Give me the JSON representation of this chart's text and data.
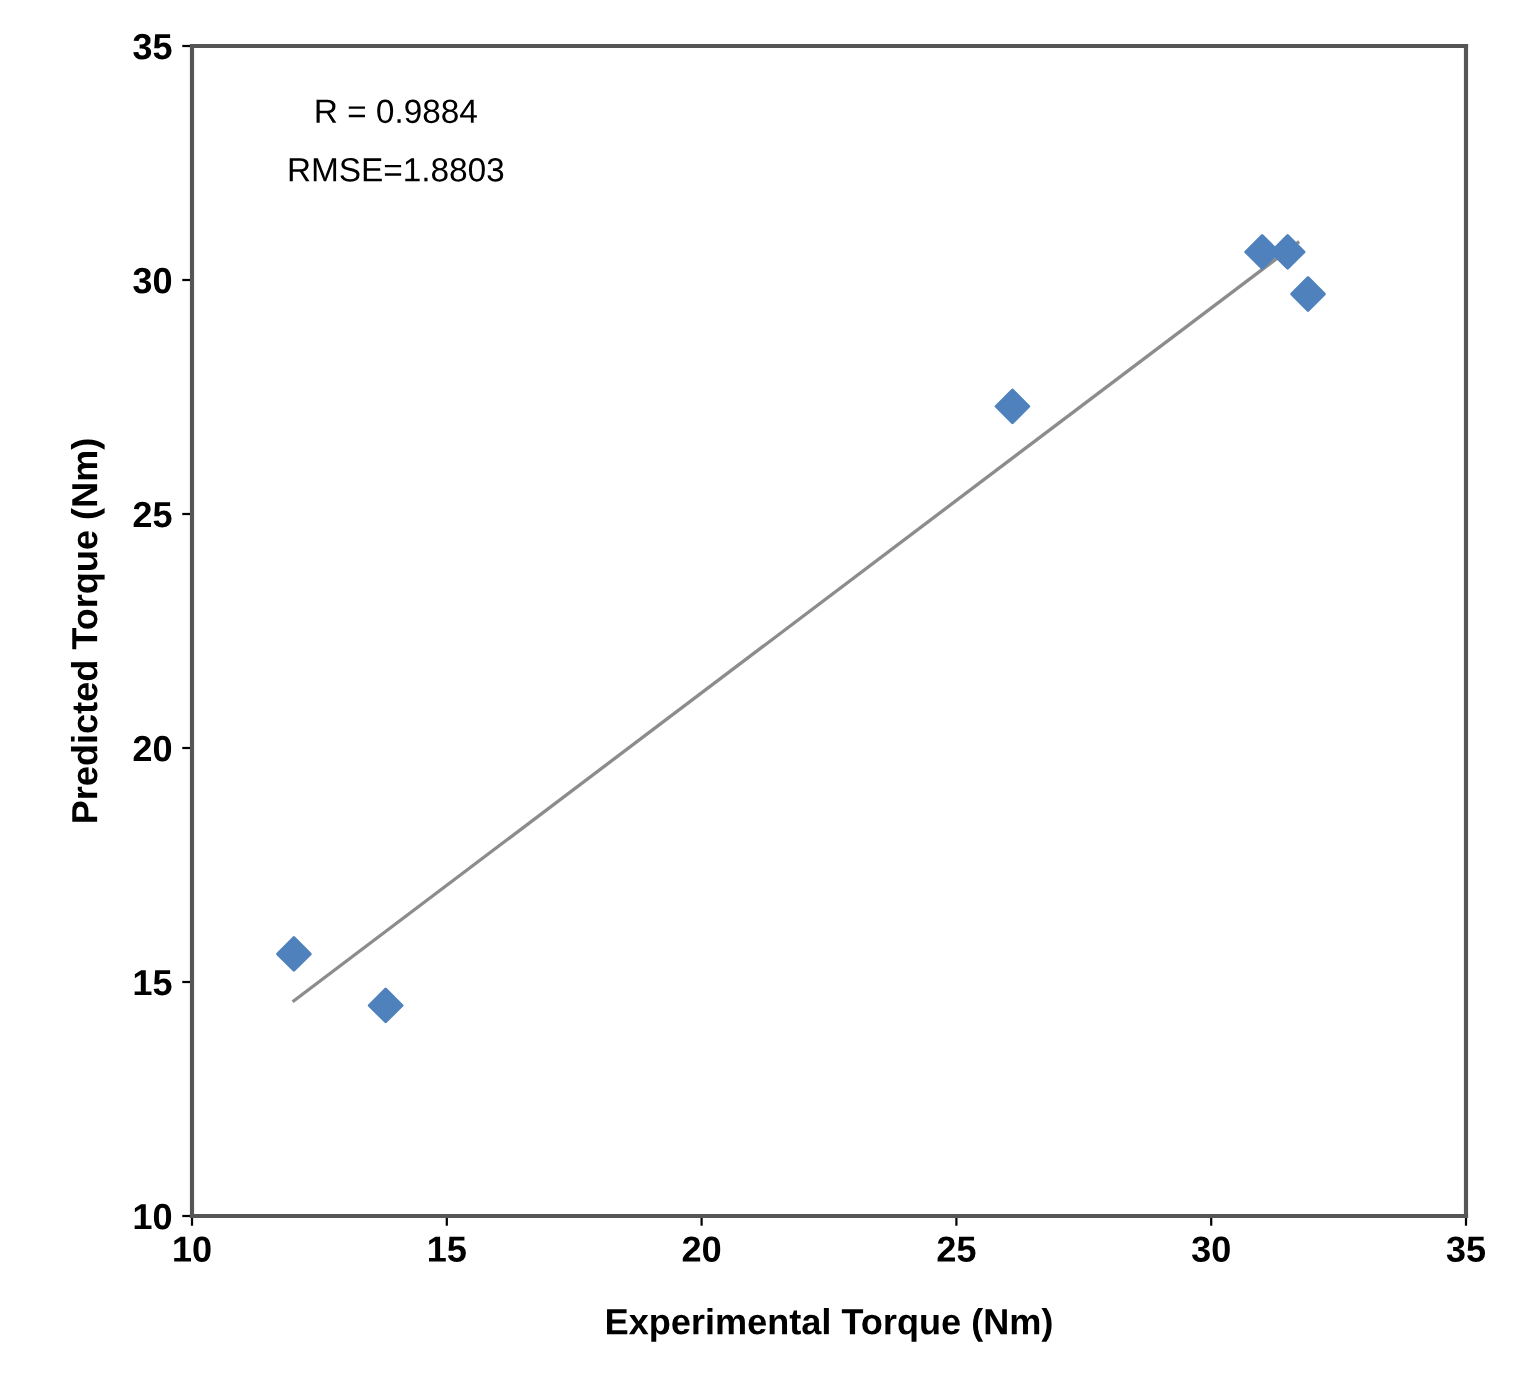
{
  "chart_data": {
    "type": "scatter",
    "xlabel": "Experimental Torque (Nm)",
    "ylabel": "Predicted Torque (Nm)",
    "series": [
      {
        "color": "#4f81bd",
        "marker": "diamond",
        "x": [
          12.0,
          13.8,
          26.1,
          31.0,
          31.5,
          31.9
        ],
        "values": [
          15.6,
          14.5,
          27.3,
          30.6,
          30.6,
          29.7
        ]
      },
      {
        "type": "line",
        "color": "#8c8c8c",
        "marker": "none",
        "x": [
          12.0,
          31.7
        ],
        "values": [
          14.6,
          30.8
        ]
      }
    ],
    "annotations": [
      "R = 0.9884",
      "RMSE=1.8803"
    ],
    "xlim": [
      10,
      35
    ],
    "xticks": [
      10,
      15,
      20,
      25,
      30,
      35
    ],
    "ylim": [
      10,
      35
    ],
    "yticks": [
      10,
      15,
      20,
      25,
      30,
      35
    ],
    "grid": false,
    "legend": false
  }
}
